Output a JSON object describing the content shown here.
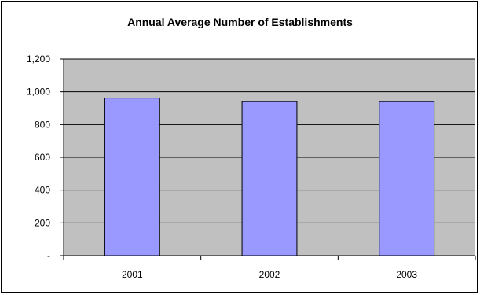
{
  "chart_data": {
    "type": "bar",
    "title": "Annual Average Number of Establishments",
    "categories": [
      "2001",
      "2002",
      "2003"
    ],
    "values": [
      962,
      940,
      940
    ],
    "xlabel": "",
    "ylabel": "",
    "ylim": [
      0,
      1200
    ],
    "y_ticks": [
      0,
      200,
      400,
      600,
      800,
      1000,
      1200
    ],
    "y_tick_labels": [
      "-",
      "200",
      "400",
      "600",
      "800",
      "1,000",
      "1,200"
    ],
    "grid": true,
    "legend": "none",
    "colors": {
      "plot_background": "#c0c0c0",
      "bar_fill": "#9999ff",
      "bar_stroke": "#000000",
      "gridline": "#000000"
    }
  }
}
